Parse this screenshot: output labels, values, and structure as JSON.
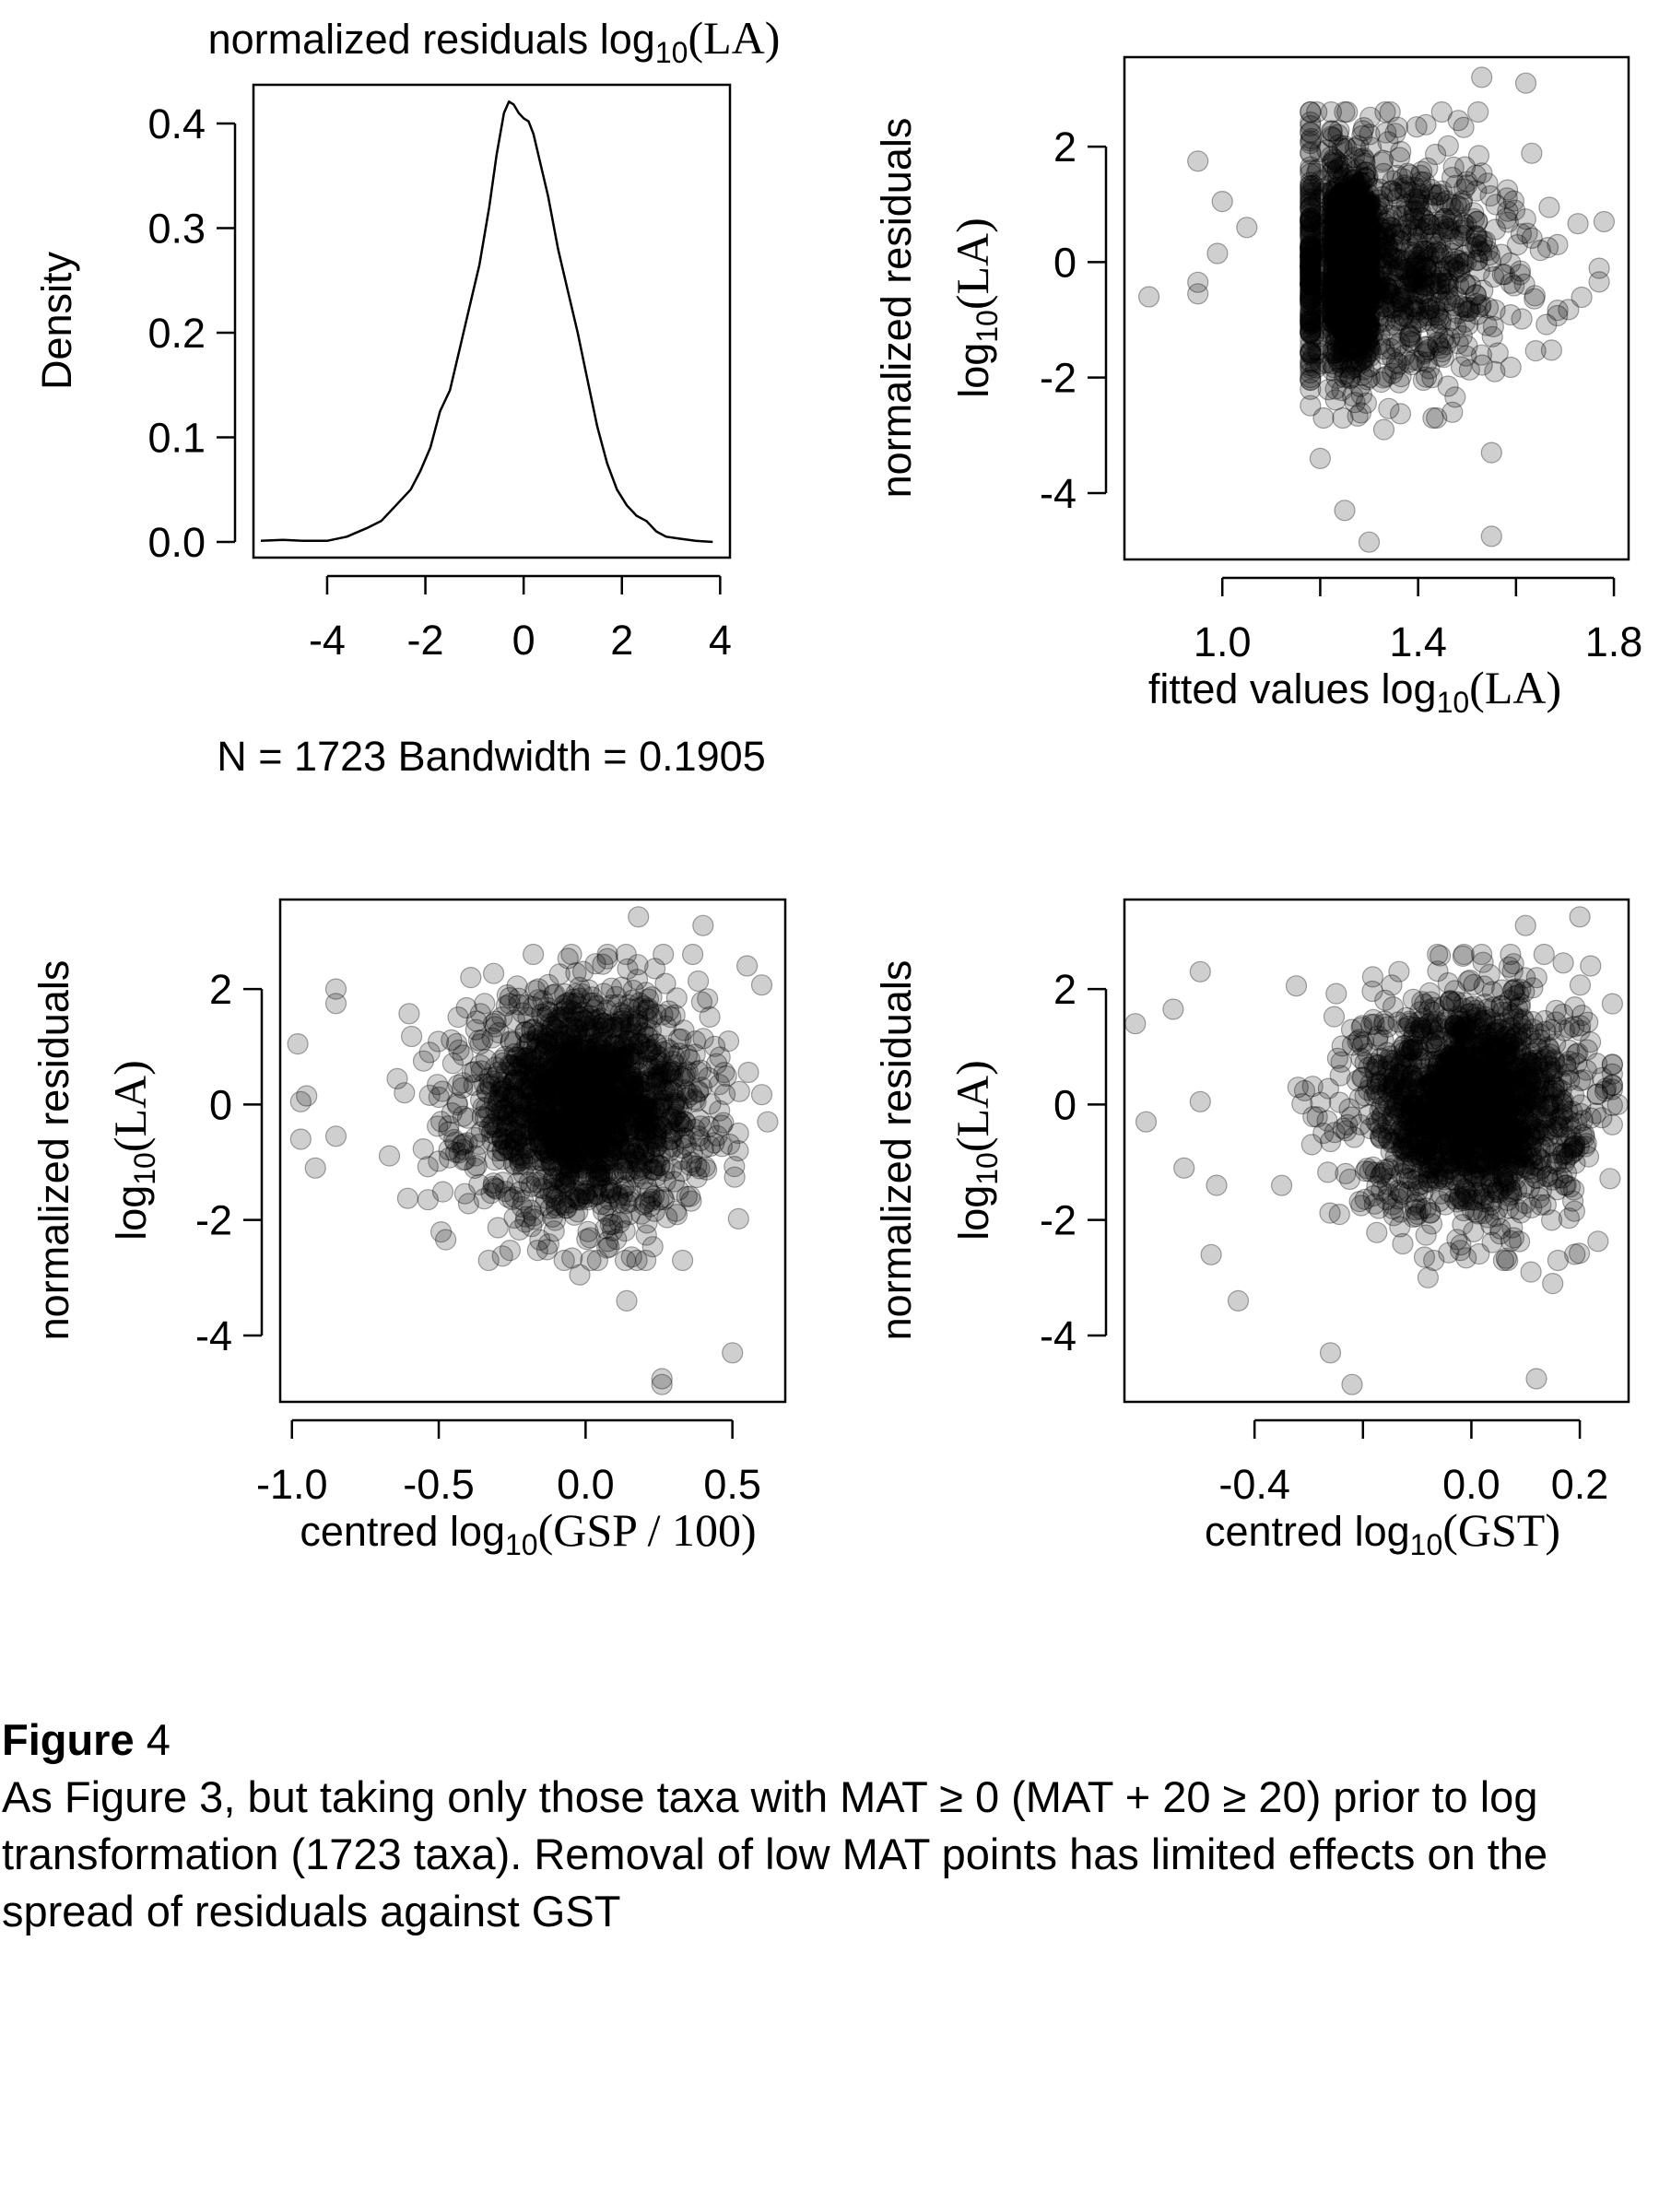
{
  "panels": {
    "density": {
      "title_prefix": "normalized  residuals  log",
      "title_sub": "10",
      "title_suffix": "(LA)",
      "ylabel": "Density",
      "xticks": [
        "-4",
        "-2",
        "0",
        "2",
        "4"
      ],
      "yticks": [
        "0.0",
        "0.1",
        "0.2",
        "0.3",
        "0.4"
      ],
      "note": "N = 1723   Bandwidth = 0.1905"
    },
    "fitted": {
      "ylabel_line1": "normalized  residuals",
      "ylabel_line2_prefix": "log",
      "ylabel_line2_sub": "10",
      "ylabel_line2_suffix": "(LA)",
      "xlabel_prefix": "fitted  values  log",
      "xlabel_sub": "10",
      "xlabel_suffix": "(LA)",
      "xticks": [
        "1.0",
        "1.4",
        "1.8"
      ],
      "yticks": [
        "-4",
        "-2",
        "0",
        "2"
      ]
    },
    "gsp": {
      "ylabel_line1": "normalized  residuals",
      "ylabel_line2_prefix": "log",
      "ylabel_line2_sub": "10",
      "ylabel_line2_suffix": "(LA)",
      "xlabel_prefix": "centred  log",
      "xlabel_sub": "10",
      "xlabel_suffix": "(GSP / 100)",
      "xticks": [
        "-1.0",
        "-0.5",
        "0.0",
        "0.5"
      ],
      "yticks": [
        "-4",
        "-2",
        "0",
        "2"
      ]
    },
    "gst": {
      "ylabel_line1": "normalized  residuals",
      "ylabel_line2_prefix": "log",
      "ylabel_line2_sub": "10",
      "ylabel_line2_suffix": "(LA)",
      "xlabel_prefix": "centred  log",
      "xlabel_sub": "10",
      "xlabel_suffix": "(GST)",
      "xticks": [
        "-0.4",
        "0.0",
        "0.2"
      ],
      "yticks": [
        "-4",
        "-2",
        "0",
        "2"
      ]
    }
  },
  "chart_data": [
    {
      "type": "line",
      "title": "normalized  residuals  log10(LA)",
      "xlabel": "N = 1723   Bandwidth = 0.1905",
      "ylabel": "Density",
      "xlim": [
        -5.5,
        4.2
      ],
      "ylim": [
        -0.015,
        0.437
      ],
      "x": [
        -5.35,
        -4.9,
        -4.5,
        -4.0,
        -3.6,
        -3.2,
        -2.9,
        -2.6,
        -2.3,
        -2.1,
        -1.9,
        -1.7,
        -1.5,
        -1.3,
        -1.1,
        -0.9,
        -0.7,
        -0.55,
        -0.4,
        -0.3,
        -0.2,
        -0.1,
        0.0,
        0.1,
        0.2,
        0.35,
        0.5,
        0.7,
        0.9,
        1.1,
        1.3,
        1.5,
        1.7,
        1.9,
        2.1,
        2.3,
        2.5,
        2.7,
        2.9,
        3.2,
        3.5,
        3.85
      ],
      "y": [
        0.001,
        0.002,
        0.001,
        0.001,
        0.005,
        0.013,
        0.02,
        0.035,
        0.05,
        0.068,
        0.09,
        0.125,
        0.145,
        0.185,
        0.225,
        0.265,
        0.32,
        0.37,
        0.41,
        0.421,
        0.418,
        0.41,
        0.405,
        0.402,
        0.39,
        0.36,
        0.33,
        0.28,
        0.24,
        0.2,
        0.155,
        0.11,
        0.075,
        0.05,
        0.035,
        0.025,
        0.02,
        0.01,
        0.005,
        0.003,
        0.001,
        0.0
      ]
    },
    {
      "type": "scatter",
      "xlabel": "fitted  values  log10(LA)",
      "ylabel": "normalized  residuals  log10(LA)",
      "xlim": [
        0.8,
        1.83
      ],
      "ylim": [
        -5.15,
        3.55
      ],
      "n_points": 1723,
      "cloud": {
        "x_mean": 1.33,
        "x_sd": 0.14,
        "x_min": 1.18,
        "x_max": 1.77,
        "y_mean": 0.0,
        "y_sd": 0.95,
        "dense_x": [
          1.22,
          1.36
        ]
      },
      "outliers": [
        [
          0.85,
          -0.6
        ],
        [
          0.95,
          1.75
        ],
        [
          0.95,
          -0.55
        ],
        [
          0.95,
          -0.35
        ],
        [
          0.99,
          0.15
        ],
        [
          1.0,
          1.05
        ],
        [
          1.05,
          0.6
        ],
        [
          1.25,
          -4.3
        ],
        [
          1.3,
          -4.85
        ],
        [
          1.2,
          -3.4
        ],
        [
          1.55,
          -4.75
        ],
        [
          1.53,
          3.2
        ],
        [
          1.62,
          3.1
        ],
        [
          1.78,
          0.7
        ],
        [
          1.55,
          -3.3
        ],
        [
          1.47,
          -2.6
        ],
        [
          1.33,
          -2.9
        ]
      ]
    },
    {
      "type": "scatter",
      "xlabel": "centred  log10(GSP / 100)",
      "ylabel": "normalized  residuals  log10(LA)",
      "xlim": [
        -1.04,
        0.68
      ],
      "ylim": [
        -5.15,
        3.55
      ],
      "n_points": 1723,
      "cloud": {
        "x_mean": 0.0,
        "x_sd": 0.2,
        "x_min": -0.8,
        "x_max": 0.6,
        "y_mean": 0.0,
        "y_sd": 0.95
      },
      "outliers": [
        [
          -0.98,
          1.05
        ],
        [
          -0.97,
          0.05
        ],
        [
          -0.97,
          -0.6
        ],
        [
          -0.95,
          0.15
        ],
        [
          -0.92,
          -1.1
        ],
        [
          -0.85,
          2.0
        ],
        [
          -0.85,
          1.75
        ],
        [
          -0.85,
          -0.55
        ],
        [
          0.26,
          -4.75
        ],
        [
          0.26,
          -4.85
        ],
        [
          0.5,
          -4.3
        ],
        [
          0.18,
          3.25
        ],
        [
          0.4,
          3.1
        ],
        [
          0.62,
          -0.3
        ],
        [
          0.55,
          2.4
        ],
        [
          -0.33,
          -2.7
        ],
        [
          -0.02,
          -2.95
        ],
        [
          0.14,
          -3.4
        ]
      ]
    },
    {
      "type": "scatter",
      "xlabel": "centred  log10(GST)",
      "ylabel": "normalized  residuals  log10(LA)",
      "xlim": [
        -0.64,
        0.29
      ],
      "ylim": [
        -5.15,
        3.55
      ],
      "n_points": 1723,
      "cloud": {
        "x_mean": 0.0,
        "x_sd": 0.1,
        "x_min": -0.35,
        "x_max": 0.26,
        "y_mean": 0.0,
        "y_sd": 0.95
      },
      "outliers": [
        [
          -0.62,
          1.4
        ],
        [
          -0.6,
          -0.3
        ],
        [
          -0.55,
          1.65
        ],
        [
          -0.53,
          -1.1
        ],
        [
          -0.5,
          2.3
        ],
        [
          -0.5,
          0.05
        ],
        [
          -0.48,
          -2.6
        ],
        [
          -0.47,
          -1.4
        ],
        [
          -0.43,
          -3.4
        ],
        [
          -0.26,
          -4.3
        ],
        [
          -0.22,
          -4.85
        ],
        [
          -0.08,
          -3.0
        ],
        [
          0.1,
          3.1
        ],
        [
          0.2,
          3.25
        ],
        [
          0.22,
          2.4
        ],
        [
          0.12,
          -4.75
        ],
        [
          0.11,
          -2.9
        ],
        [
          0.15,
          -3.1
        ],
        [
          0.26,
          -0.35
        ],
        [
          0.27,
          0.0
        ]
      ]
    }
  ],
  "caption": {
    "label": "Figure",
    "number": "4",
    "text": "As Figure 3, but taking only those taxa with MAT ≥ 0 (MAT + 20 ≥ 20) prior to log transformation (1723 taxa). Removal of low MAT points has limited effects on the spread of residuals against GST"
  }
}
